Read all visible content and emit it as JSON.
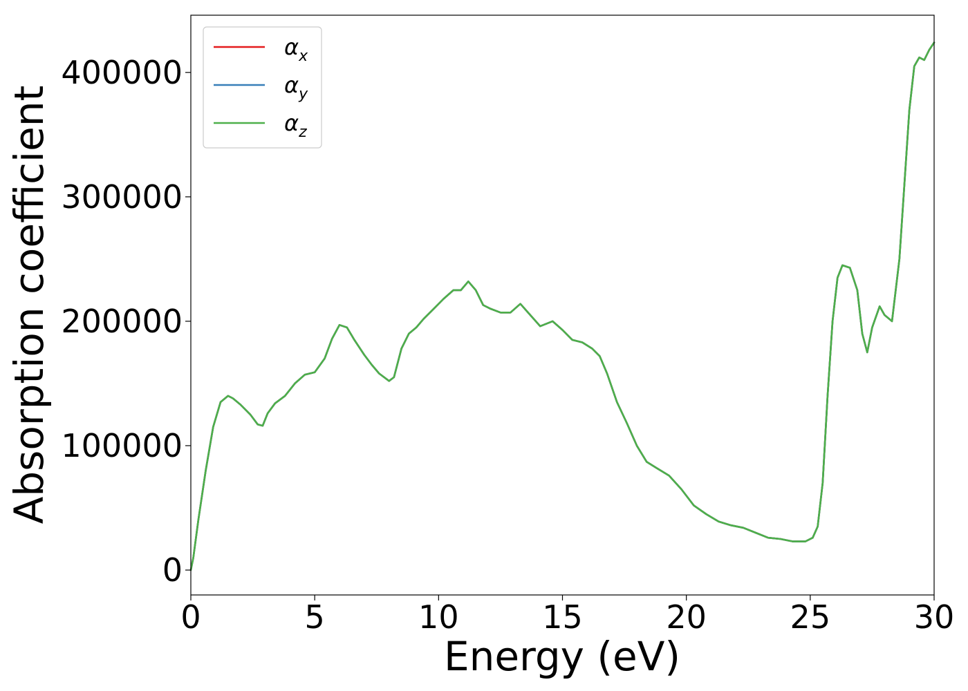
{
  "chart_data": {
    "type": "line",
    "xlabel": "Energy (eV)",
    "ylabel": "Absorption coefficient",
    "xlim": [
      0,
      30
    ],
    "ylim": [
      -20000,
      446000
    ],
    "xticks": [
      "0",
      "5",
      "10",
      "15",
      "20",
      "25",
      "30"
    ],
    "yticks": [
      "0",
      "100000",
      "200000",
      "300000",
      "400000"
    ],
    "grid": false,
    "legend_position": "top-left",
    "x": [
      0,
      0.1,
      0.3,
      0.6,
      0.9,
      1.2,
      1.5,
      1.7,
      2.0,
      2.4,
      2.7,
      2.9,
      3.1,
      3.4,
      3.8,
      4.2,
      4.6,
      5.0,
      5.4,
      5.7,
      6.0,
      6.3,
      6.6,
      7.0,
      7.3,
      7.6,
      8.0,
      8.2,
      8.5,
      8.8,
      9.1,
      9.4,
      9.8,
      10.2,
      10.6,
      10.9,
      11.2,
      11.5,
      11.8,
      12.1,
      12.5,
      12.9,
      13.3,
      13.7,
      14.1,
      14.6,
      15.0,
      15.4,
      15.8,
      16.2,
      16.5,
      16.8,
      17.2,
      17.6,
      18.0,
      18.4,
      18.8,
      19.3,
      19.8,
      20.3,
      20.8,
      21.3,
      21.8,
      22.3,
      22.8,
      23.3,
      23.8,
      24.3,
      24.8,
      25.1,
      25.3,
      25.5,
      25.7,
      25.9,
      26.1,
      26.3,
      26.6,
      26.9,
      27.1,
      27.3,
      27.5,
      27.8,
      28.0,
      28.3,
      28.6,
      28.8,
      29.0,
      29.2,
      29.4,
      29.6,
      29.8,
      30.0
    ],
    "series": [
      {
        "name": "α_x",
        "color": "#e41a1c",
        "values": [
          0,
          10000,
          40000,
          80000,
          115000,
          135000,
          140000,
          138000,
          133000,
          125000,
          117000,
          116000,
          126000,
          134000,
          140000,
          150000,
          157000,
          159000,
          170000,
          186000,
          197000,
          195000,
          185000,
          173000,
          165000,
          158000,
          152000,
          155000,
          178000,
          190000,
          195000,
          202000,
          210000,
          218000,
          225000,
          225000,
          232000,
          225000,
          213000,
          210000,
          207000,
          207000,
          214000,
          205000,
          196000,
          200000,
          193000,
          185000,
          183000,
          178000,
          172000,
          158000,
          135000,
          118000,
          100000,
          87000,
          82000,
          76000,
          65000,
          52000,
          45000,
          39000,
          36000,
          34000,
          30000,
          26000,
          25000,
          23000,
          23000,
          26000,
          35000,
          70000,
          140000,
          200000,
          235000,
          245000,
          243000,
          225000,
          190000,
          175000,
          195000,
          212000,
          205000,
          200000,
          250000,
          310000,
          370000,
          405000,
          412000,
          410000,
          418000,
          424000
        ]
      },
      {
        "name": "α_y",
        "color": "#377eb8",
        "values": [
          0,
          10000,
          40000,
          80000,
          115000,
          135000,
          140000,
          138000,
          133000,
          125000,
          117000,
          116000,
          126000,
          134000,
          140000,
          150000,
          157000,
          159000,
          170000,
          186000,
          197000,
          195000,
          185000,
          173000,
          165000,
          158000,
          152000,
          155000,
          178000,
          190000,
          195000,
          202000,
          210000,
          218000,
          225000,
          225000,
          232000,
          225000,
          213000,
          210000,
          207000,
          207000,
          214000,
          205000,
          196000,
          200000,
          193000,
          185000,
          183000,
          178000,
          172000,
          158000,
          135000,
          118000,
          100000,
          87000,
          82000,
          76000,
          65000,
          52000,
          45000,
          39000,
          36000,
          34000,
          30000,
          26000,
          25000,
          23000,
          23000,
          26000,
          35000,
          70000,
          140000,
          200000,
          235000,
          245000,
          243000,
          225000,
          190000,
          175000,
          195000,
          212000,
          205000,
          200000,
          250000,
          310000,
          370000,
          405000,
          412000,
          410000,
          418000,
          424000
        ]
      },
      {
        "name": "α_z",
        "color": "#4daf4a",
        "values": [
          0,
          10000,
          40000,
          80000,
          115000,
          135000,
          140000,
          138000,
          133000,
          125000,
          117000,
          116000,
          126000,
          134000,
          140000,
          150000,
          157000,
          159000,
          170000,
          186000,
          197000,
          195000,
          185000,
          173000,
          165000,
          158000,
          152000,
          155000,
          178000,
          190000,
          195000,
          202000,
          210000,
          218000,
          225000,
          225000,
          232000,
          225000,
          213000,
          210000,
          207000,
          207000,
          214000,
          205000,
          196000,
          200000,
          193000,
          185000,
          183000,
          178000,
          172000,
          158000,
          135000,
          118000,
          100000,
          87000,
          82000,
          76000,
          65000,
          52000,
          45000,
          39000,
          36000,
          34000,
          30000,
          26000,
          25000,
          23000,
          23000,
          26000,
          35000,
          70000,
          140000,
          200000,
          235000,
          245000,
          243000,
          225000,
          190000,
          175000,
          195000,
          212000,
          205000,
          200000,
          250000,
          310000,
          370000,
          405000,
          412000,
          410000,
          418000,
          424000
        ]
      }
    ],
    "legend": [
      {
        "symbol": "α",
        "sub": "x"
      },
      {
        "symbol": "α",
        "sub": "y"
      },
      {
        "symbol": "α",
        "sub": "z"
      }
    ]
  }
}
